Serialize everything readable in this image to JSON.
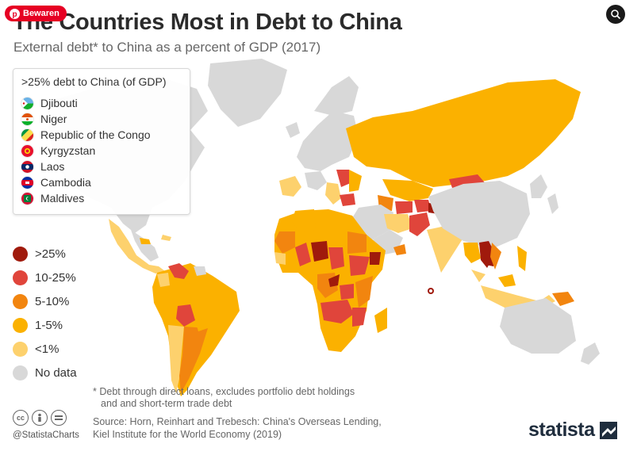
{
  "header": {
    "title": "The Countries Most in Debt to China",
    "subtitle": "External debt* to China as a percent of GDP (2017)"
  },
  "save_button": {
    "label": "Bewaren"
  },
  "top_countries": {
    "heading": ">25% debt to China (of GDP)",
    "items": [
      {
        "label": "Djibouti"
      },
      {
        "label": "Niger"
      },
      {
        "label": "Republic of the Congo"
      },
      {
        "label": "Kyrgyzstan"
      },
      {
        "label": "Laos"
      },
      {
        "label": "Cambodia"
      },
      {
        "label": "Maldives"
      }
    ]
  },
  "legend": {
    "items": [
      {
        "label": ">25%",
        "color": "#a01a0c"
      },
      {
        "label": "10-25%",
        "color": "#e0453b"
      },
      {
        "label": "5-10%",
        "color": "#f2850f"
      },
      {
        "label": "1-5%",
        "color": "#fbb100"
      },
      {
        "label": "<1%",
        "color": "#fdd16d"
      },
      {
        "label": "No data",
        "color": "#d8d8d8"
      }
    ]
  },
  "footnote": {
    "line1": "* Debt through direct loans, excludes portfolio debt holdings",
    "line2": "and and short-term trade debt"
  },
  "source": {
    "line1": "Source: Horn, Reinhart and Trebesch: China's Overseas Lending,",
    "line2": "Kiel Institute for the World Economy (2019)"
  },
  "branding": {
    "handle": "@StatistaCharts",
    "logo_text": "statista",
    "license_icons": [
      "cc-icon",
      "by-icon",
      "nd-icon"
    ]
  }
}
